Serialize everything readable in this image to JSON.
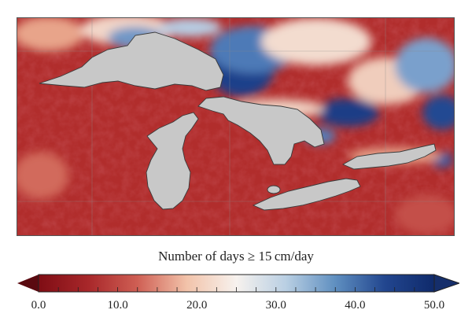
{
  "colorbar": {
    "title": "Number of days ≥ 15 cm/day",
    "min": 0.0,
    "max": 50.0,
    "ticks": [
      "0.0",
      "10.0",
      "20.0",
      "30.0",
      "40.0",
      "50.0"
    ],
    "colors": [
      "#7f0d14",
      "#a8272a",
      "#cf5f54",
      "#f2c3aa",
      "#f7f2ee",
      "#b9cfe3",
      "#5f8fc0",
      "#22468f",
      "#0f2a6b"
    ],
    "extend": "both"
  },
  "map": {
    "region": "Great Lakes",
    "water_color": "#c8c8c8",
    "coastline_color": "#3a3a3a"
  }
}
